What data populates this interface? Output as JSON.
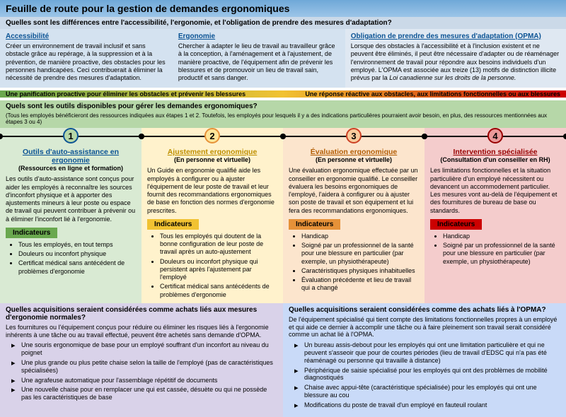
{
  "header": "Feuille de route pour la gestion de demandes ergonomiques",
  "q1": "Quelles sont les différences entre l'accessibilité, l'ergonomie, et l'obligation de prendre des mesures d'adaptation?",
  "defs": [
    {
      "title": "Accessibilité",
      "body": "Créer un environnement de travail inclusif et sans obstacle grâce au repérage, à la suppression et à la prévention, de manière proactive, des obstacles pour les personnes handicapées. Ceci contribuerait à éliminer la nécessité de prendre des mesures d'adaptation."
    },
    {
      "title": "Ergonomie",
      "body": "Chercher à adapter le lieu de travail au travailleur grâce à la conception, à l'aménagement et à l'ajustement, de manière proactive, de l'équipement afin de prévenir les blessures et de promouvoir un lieu de travail sain, productif et sans danger."
    },
    {
      "title": "Obligation de prendre des mesures d'adaptation (OPMA)",
      "body": "Lorsque des obstacles à l'accessibilité et à l'inclusion existent et ne peuvent être éliminés, il peut être nécessaire d'adapter ou de réaménager l'environnement de travail pour répondre aux besoins individuels d'un employé. L'OPMA est associée aux treize (13) motifs de distinction illicite prévus par la "
    }
  ],
  "defs_law": "Loi canadienne sur les droits de la personne.",
  "grad": {
    "left": "Une panification proactive pour éliminer les obstacles et prévenir les blessures",
    "right": "Une réponse réactive aux obstacles, aux limitations fonctionnelles ou aux blessures"
  },
  "q2": "Quels sont les outils disponibles pour gérer les demandes ergonomiques?",
  "q2_note": "(Tous les employés bénéficieront des ressources indiquées aux étapes 1 et 2.  Toutefois, les employés pour lesquels il y a des indications particulières pourraient avoir besoin, en plus, des ressources mentionnées aux étapes 3 ou 4)",
  "steps": [
    {
      "n": "1",
      "title": "Outils d'auto-assistance en ergonomie",
      "sub": "(Ressources en ligne et formation)",
      "body": "Les outils d'auto-assistance sont conçus pour aider les employés à reconnaître les sources d'inconfort physique et à apporter des ajustements mineurs à leur poste ou espace de travail qui peuvent contribuer à prévenir ou à éliminer l'inconfort lié à l'ergonomie.",
      "ind": [
        "Tous les employés, en tout temps",
        "Douleurs ou inconfort physique",
        "Certificat médical sans antécédent de problèmes d'ergonomie"
      ]
    },
    {
      "n": "2",
      "title": "Ajustement ergonomique",
      "sub": "(En personne et virtuelle)",
      "body": "Un Guide en ergonomie qualifié aide les employés à configurer ou à ajuster l'équipement de leur poste de travail et leur fournit des recommandations ergonomiques de base en fonction des normes d'ergonomie prescrites.",
      "ind": [
        "Tous les employés qui doutent de la bonne configuration de leur poste de travail après un auto-ajustement",
        "Douleurs ou inconfort physique qui persistent après l'ajustement par l'employé",
        "Certificat médical sans antécédents de problèmes d'ergonomie"
      ]
    },
    {
      "n": "3",
      "title": "Évaluation ergonomique",
      "sub": "(En personne et virtuelle)",
      "body": "Une évaluation ergonomique effectuée par un conseiller en ergonomie qualifié. Le conseiller évaluera les besoins ergonomiques de l'employé, l'aidera à configurer ou à ajuster son poste de travail et son équipement et lui fera des recommandations ergonomiques.",
      "ind": [
        "Handicap",
        "Soigné par un professionnel de la santé pour une blessure en particulier (par exemple, un physiothérapeute)",
        "Caractéristiques physiques inhabituelles",
        "Évaluation précédente et lieu de travail qui a changé"
      ]
    },
    {
      "n": "4",
      "title": "Intervention spécialisée",
      "sub": "(Consultation d'un conseiller en RH)",
      "body": "Les limitations fonctionnelles et la situation particulière d'un employé nécessitent ou devancent un accommodement particulier. Les mesures vont au-delà de l'équipement et des fournitures de bureau de base ou standards.",
      "ind": [
        "Handicap",
        "Soigné par un professionnel de la santé pour une blessure en particulier (par exemple, un physiothérapeute)"
      ]
    }
  ],
  "ind_label": "Indicateurs",
  "bottom": {
    "left": {
      "q": "Quelles acquisitions seraient considérées comme achats liés aux mesures d'ergonomie normales?",
      "desc": "Les fournitures ou l'équipement conçus pour réduire ou éliminer les risques liés à l'ergonomie inhérents à une tâche ou au travail effectué, peuvent être achetés sans demande d'OPMA.",
      "items": [
        "Une souris ergonomique de base pour un employé souffrant d'un inconfort au niveau du poignet",
        "Une plus grande ou plus petite chaise selon la taille de l'employé (pas de caractéristiques spécialisées)",
        "Une agrafeuse automatique pour l'assemblage répétitif de documents",
        "Une nouvelle chaise pour en remplacer une qui est cassée, désuète ou qui ne possède pas les caractéristiques de base"
      ]
    },
    "right": {
      "q": "Quelles acquisitions seraient considérées comme des achats liés à l'OPMA?",
      "desc": "De l'équipement spécialisé qui tient compte des limitations fonctionnelles propres à un employé et qui aide ce dernier à accomplir une tâche ou à faire pleinement son travail serait considéré comme un achat lié à l'OPMA.",
      "items": [
        "Un bureau assis-debout pour les employés qui ont une limitation particulière et qui ne peuvent s'asseoir que pour de courtes périodes (lieu de travail d'EDSC qui n'a pas été réaménagé ou personne qui travaille à distance)",
        "Périphérique de saisie spécialisé pour les employés qui ont des problèmes de mobilité diagnostiqués",
        "Chaise avec appui-tête (caractéristique spécialisée) pour les employés qui ont une blessure au cou",
        "Modifications du poste de travail d'un employé en fauteuil roulant"
      ]
    }
  },
  "colors": {
    "bg1": "#d9ead3",
    "bg2": "#fff2cc",
    "bg3": "#fce5cd",
    "bg4": "#f4cccc"
  }
}
